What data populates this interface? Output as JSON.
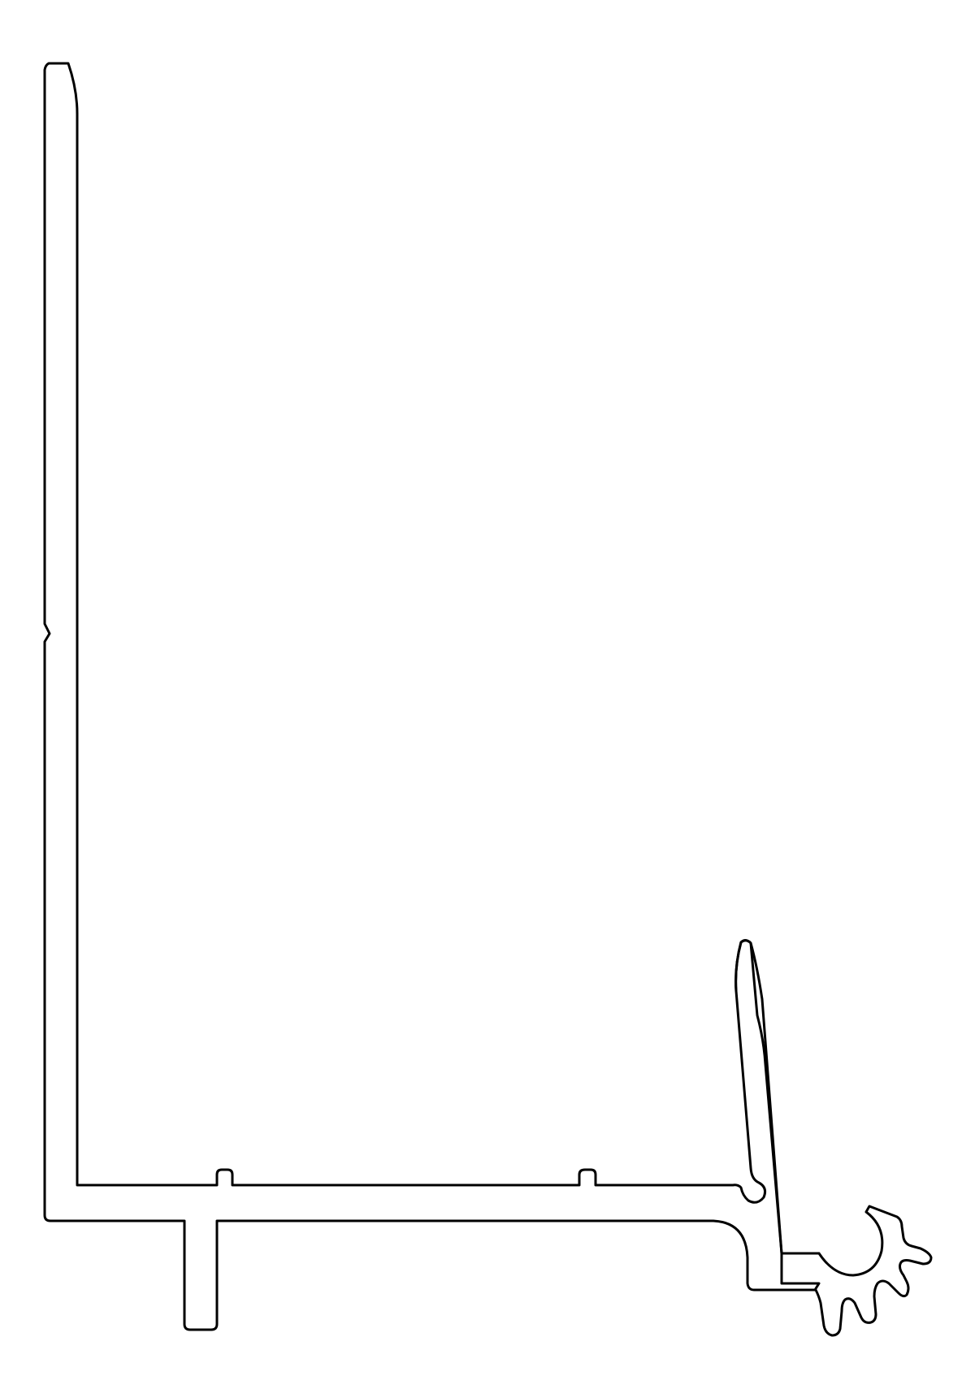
{
  "drawing": {
    "kind": "extrusion-profile-cross-section",
    "colors": {
      "background": "#ffffff",
      "outline": "#000000"
    }
  }
}
